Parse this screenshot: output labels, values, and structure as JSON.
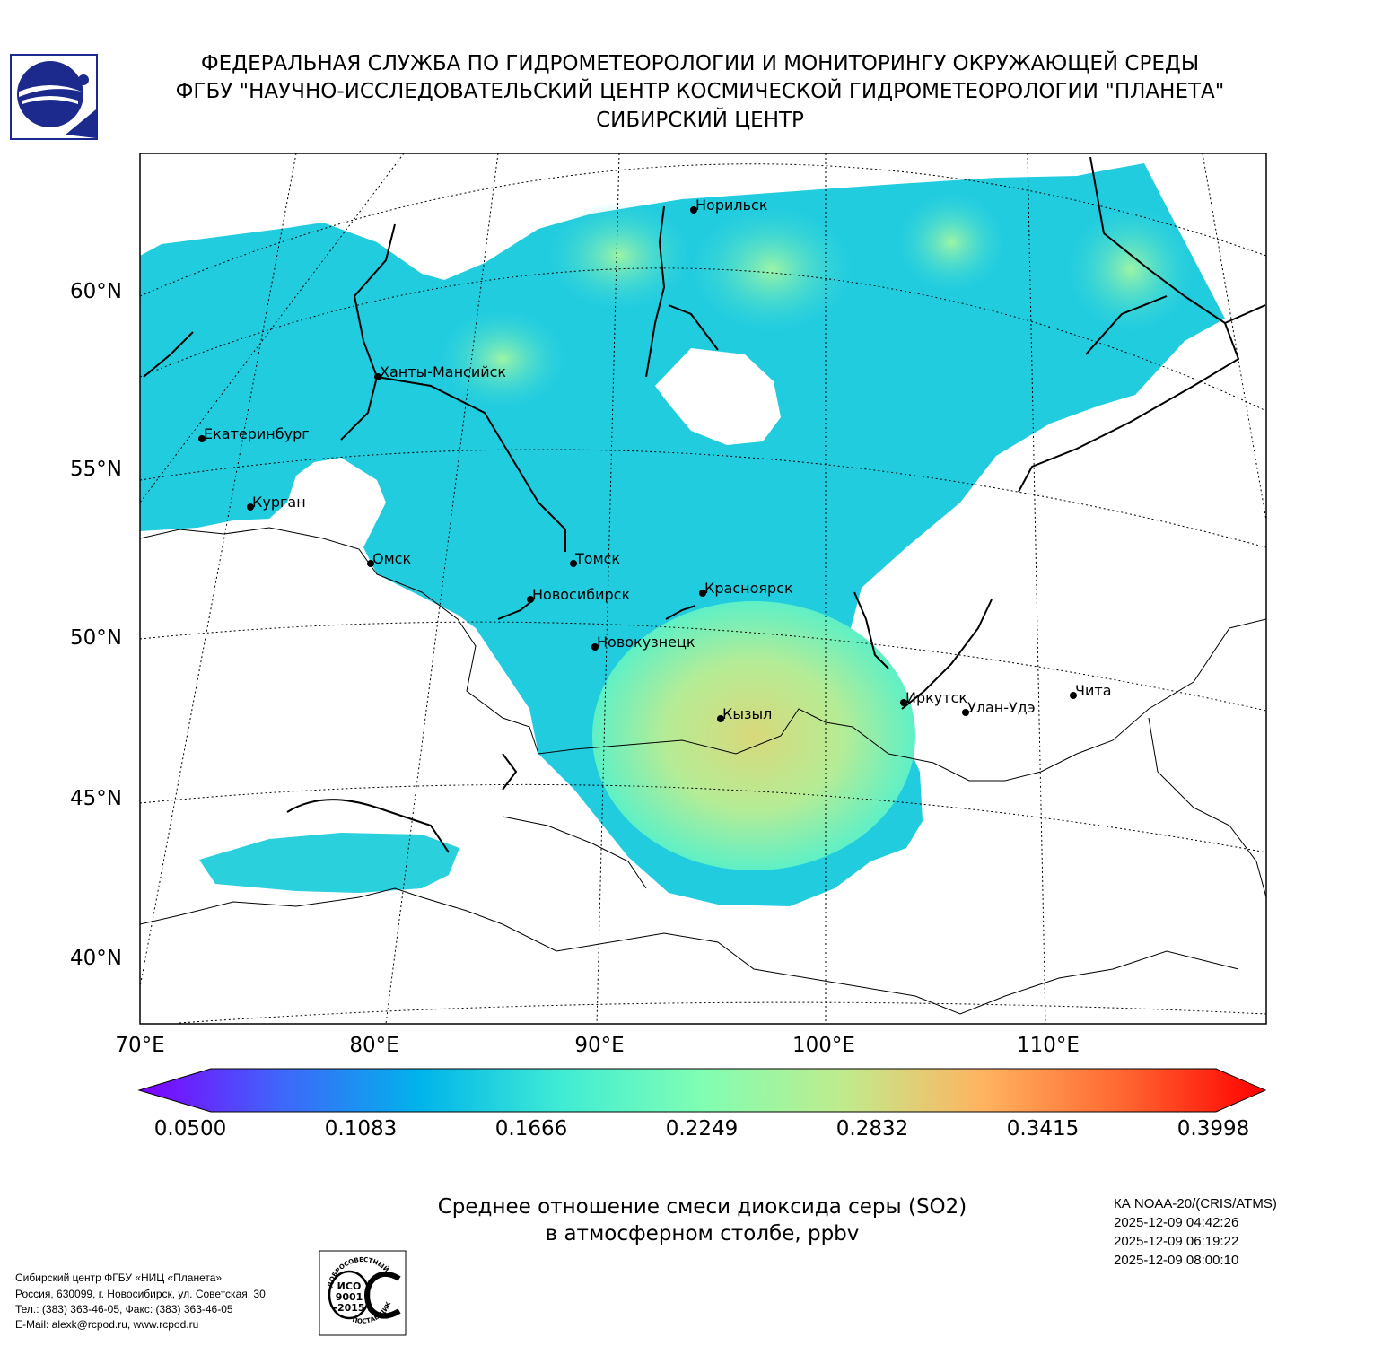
{
  "header": {
    "line1": "ФЕДЕРАЛЬНАЯ СЛУЖБА ПО ГИДРОМЕТЕОРОЛОГИИ И МОНИТОРИНГУ ОКРУЖАЮЩЕЙ СРЕДЫ",
    "line2": "ФГБУ \"НАУЧНО-ИССЛЕДОВАТЕЛЬСКИЙ ЦЕНТР КОСМИЧЕСКОЙ ГИДРОМЕТЕОРОЛОГИИ \"ПЛАНЕТА\"",
    "line3": "СИБИРСКИЙ ЦЕНТР"
  },
  "map": {
    "lat_labels": [
      "60°N",
      "55°N",
      "50°N",
      "45°N",
      "40°N"
    ],
    "lon_labels": [
      "70°E",
      "80°E",
      "90°E",
      "100°E",
      "110°E"
    ],
    "cities": [
      "Норильск",
      "Ханты-Мансийск",
      "Екатеринбург",
      "Курган",
      "Омск",
      "Томск",
      "Новосибирск",
      "Красноярск",
      "Новокузнецк",
      "Кызыл",
      "Иркутск",
      "Улан-Удэ",
      "Чита"
    ]
  },
  "colorbar": {
    "labels": [
      "0.0500",
      "0.1083",
      "0.1666",
      "0.2249",
      "0.2832",
      "0.3415",
      "0.3998"
    ],
    "colors": [
      "#7f00ff",
      "#4065fa",
      "#00b4eb",
      "#40ecd4",
      "#80feb3",
      "#c0eb8d",
      "#ffb360",
      "#ff6530",
      "#ff0000"
    ]
  },
  "title": {
    "line1": "Среднее отношение смеси диоксида серы (SO2)",
    "line2": "в атмосферном столбе, ppbv"
  },
  "satellite": {
    "name": "КА NOAA-20/(CRIS/ATMS)",
    "times": [
      "2025-12-09 04:42:26",
      "2025-12-09 06:19:22",
      "2025-12-09 08:00:10"
    ]
  },
  "footer": {
    "lines": [
      "Сибирский центр ФГБУ «НИЦ «Планета»",
      "Россия, 630099, г. Новосибирск, ул. Советская, 30",
      "Тел.: (383) 363-46-05, Факс: (383) 363-46-05",
      "E-Mail: alexk@rcpod.ru, www.rcpod.ru"
    ]
  },
  "iso_badge": {
    "top_text": "ДОБРОСОВЕСТНЫЙ",
    "line1": "ИСО",
    "line2": "9001",
    "line3": "-2015",
    "bottom_text": "ПОСТАВЩИК"
  }
}
